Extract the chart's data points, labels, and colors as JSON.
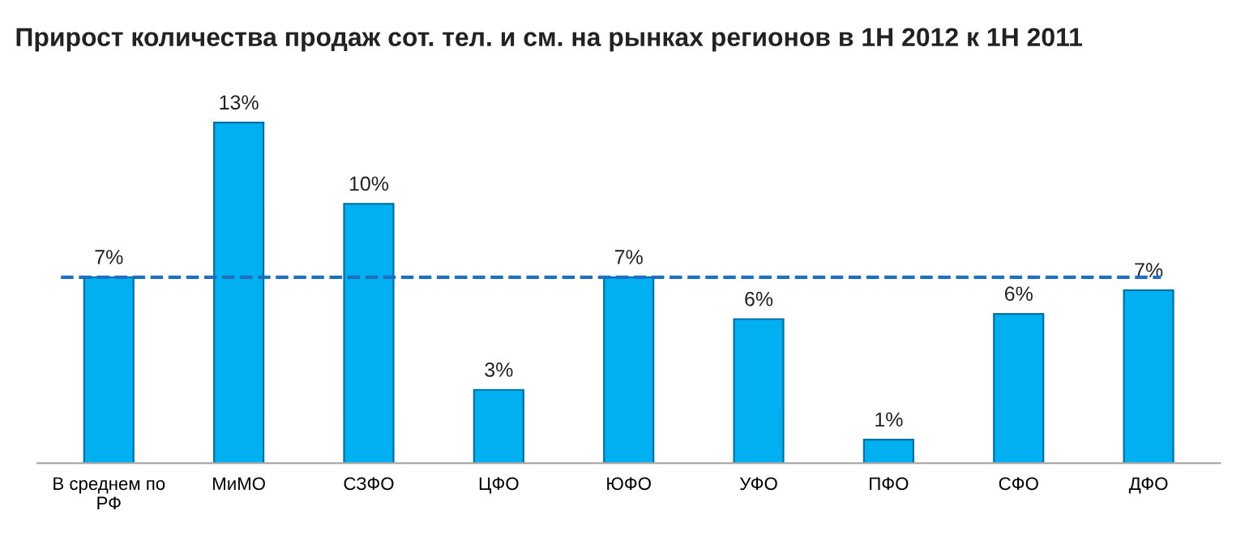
{
  "chart_data": {
    "type": "bar",
    "title": "Прирост количества продаж сот. тел. и см. на рынках регионов в 1Н 2012 к 1Н 2011",
    "categories": [
      "В среднем по\nРФ",
      "МиМО",
      "СЗФО",
      "ЦФО",
      "ЮФО",
      "УФО",
      "ПФО",
      "СФО",
      "ДФО"
    ],
    "values": [
      7.1,
      13,
      9.9,
      2.8,
      7.1,
      5.5,
      0.9,
      5.7,
      6.6
    ],
    "value_labels": [
      "7%",
      "13%",
      "10%",
      "3%",
      "7%",
      "6%",
      "1%",
      "6%",
      "7%"
    ],
    "color": "#00b0f0",
    "ref_lines": [
      {
        "axis": "y",
        "value": 7.1,
        "color": "#1f6fc0",
        "line_style": "dashed"
      }
    ],
    "grid": false,
    "legend": false
  }
}
